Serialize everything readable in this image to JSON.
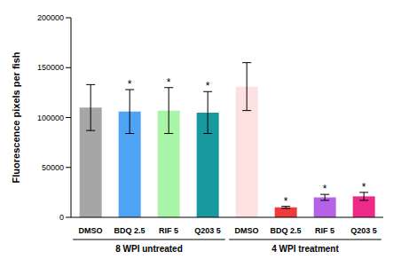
{
  "chart_data": {
    "type": "bar",
    "y_label": "Fluorescence pixels per fish",
    "categories": [
      "DMSO",
      "BDQ 2.5",
      "RIF 5",
      "Q203 5",
      "DMSO",
      "BDQ 2.5",
      "RIF 5",
      "Q203 5"
    ],
    "values": [
      110000,
      106000,
      107000,
      105000,
      131000,
      10000,
      20000,
      21000
    ],
    "errors": [
      23000,
      22000,
      23000,
      21000,
      24000,
      1000,
      3000,
      4000
    ],
    "annotations": [
      null,
      "*",
      "*",
      "*",
      null,
      "*",
      "*",
      "*"
    ],
    "colors": [
      "#a6a6a6",
      "#4ea3f5",
      "#a8f5a8",
      "#17999e",
      "#fde1e1",
      "#ee3b3b",
      "#b562e6",
      "#ee2a88"
    ],
    "groups": [
      {
        "label": "8 WPI untreated",
        "categories": [
          "DMSO",
          "BDQ 2.5",
          "RIF 5",
          "Q203 5"
        ]
      },
      {
        "label": "4 WPI treatment",
        "categories": [
          "DMSO",
          "BDQ 2.5",
          "RIF 5",
          "Q203 5"
        ]
      }
    ],
    "ylim": [
      0,
      200000
    ],
    "yticks": [
      0,
      50000,
      100000,
      150000,
      200000
    ],
    "grid": false
  }
}
